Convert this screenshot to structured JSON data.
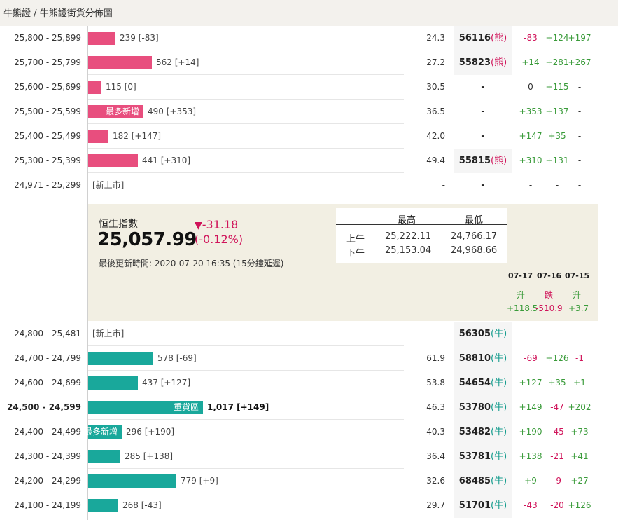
{
  "breadcrumb": {
    "part1": "牛熊證",
    "sep": "/",
    "part2": "牛熊證街貨分佈圖"
  },
  "colors": {
    "bear": "#e84e7e",
    "bull": "#19a89b",
    "up": "#3a9b3a",
    "down": "#d0145a",
    "panel": "#f2efe3"
  },
  "rows_top": [
    {
      "range": "25,800 - 25,899",
      "bar": 239,
      "count": "239 [-83]",
      "ratio": "24.3",
      "code": "56116",
      "tag": "(熊)",
      "c1": "-83",
      "c2": "+124",
      "c3": "+197"
    },
    {
      "range": "25,700 - 25,799",
      "bar": 562,
      "count": "562 [+14]",
      "ratio": "27.2",
      "code": "55823",
      "tag": "(熊)",
      "c1": "+14",
      "c2": "+281",
      "c3": "+267"
    },
    {
      "range": "25,600 - 25,699",
      "bar": 115,
      "count": "115 [0]",
      "ratio": "30.5",
      "code": "-",
      "tag": "",
      "c1": "0",
      "c2": "+115",
      "c3": "-"
    },
    {
      "range": "25,500 - 25,599",
      "bar": 490,
      "count": "490 [+353]",
      "inlabel": "最多新增",
      "ratio": "36.5",
      "code": "-",
      "tag": "",
      "c1": "+353",
      "c2": "+137",
      "c3": "-"
    },
    {
      "range": "25,400 - 25,499",
      "bar": 182,
      "count": "182 [+147]",
      "ratio": "42.0",
      "code": "-",
      "tag": "",
      "c1": "+147",
      "c2": "+35",
      "c3": "-"
    },
    {
      "range": "25,300 - 25,399",
      "bar": 441,
      "count": "441 [+310]",
      "ratio": "49.4",
      "code": "55815",
      "tag": "(熊)",
      "c1": "+310",
      "c2": "+131",
      "c3": "-"
    },
    {
      "range": "24,971 - 25,299",
      "bar": 0,
      "count": "[新上市]",
      "ratio": "-",
      "code": "-",
      "tag": "",
      "c1": "-",
      "c2": "-",
      "c3": "-"
    }
  ],
  "index": {
    "title": "恒生指數",
    "value": "25,057.99",
    "change": "-31.18",
    "change_pct": "(-0.12%)",
    "updated": "最後更新時間: 2020-07-20 16:35 (15分鐘延遲)",
    "hl_head_high": "最高",
    "hl_head_low": "最低",
    "am_label": "上午",
    "am_high": "25,222.11",
    "am_low": "24,766.17",
    "pm_label": "下午",
    "pm_high": "25,153.04",
    "pm_low": "24,968.66",
    "hist": [
      {
        "date": "07-17",
        "dir": "升",
        "val": "+118.5",
        "trend": "up"
      },
      {
        "date": "07-16",
        "dir": "跌",
        "val": "-510.9",
        "trend": "down"
      },
      {
        "date": "07-15",
        "dir": "升",
        "val": "+3.7",
        "trend": "up"
      }
    ]
  },
  "rows_bottom": [
    {
      "range": "24,800 - 25,481",
      "bar": 0,
      "count": "[新上市]",
      "ratio": "-",
      "code": "56305",
      "tag": "(牛)",
      "c1": "-",
      "c2": "-",
      "c3": "-"
    },
    {
      "range": "24,700 - 24,799",
      "bar": 578,
      "count": "578 [-69]",
      "ratio": "61.9",
      "code": "58810",
      "tag": "(牛)",
      "c1": "-69",
      "c2": "+126",
      "c3": "-1"
    },
    {
      "range": "24,600 - 24,699",
      "bar": 437,
      "count": "437 [+127]",
      "ratio": "53.8",
      "code": "54654",
      "tag": "(牛)",
      "c1": "+127",
      "c2": "+35",
      "c3": "+1"
    },
    {
      "range": "24,500 - 24,599",
      "bar": 1017,
      "count": "1,017 [+149]",
      "inlabel": "重貨區",
      "bold": true,
      "ratio": "46.3",
      "code": "53780",
      "tag": "(牛)",
      "c1": "+149",
      "c2": "-47",
      "c3": "+202"
    },
    {
      "range": "24,400 - 24,499",
      "bar": 296,
      "count": "296 [+190]",
      "inlabel": "最多新增",
      "ratio": "40.3",
      "code": "53482",
      "tag": "(牛)",
      "c1": "+190",
      "c2": "-45",
      "c3": "+73"
    },
    {
      "range": "24,300 - 24,399",
      "bar": 285,
      "count": "285 [+138]",
      "ratio": "36.4",
      "code": "53781",
      "tag": "(牛)",
      "c1": "+138",
      "c2": "-21",
      "c3": "+41"
    },
    {
      "range": "24,200 - 24,299",
      "bar": 779,
      "count": "779 [+9]",
      "ratio": "32.6",
      "code": "68485",
      "tag": "(牛)",
      "c1": "+9",
      "c2": "-9",
      "c3": "+27"
    },
    {
      "range": "24,100 - 24,199",
      "bar": 268,
      "count": "268 [-43]",
      "ratio": "29.7",
      "code": "51701",
      "tag": "(牛)",
      "c1": "-43",
      "c2": "-20",
      "c3": "+126"
    }
  ]
}
